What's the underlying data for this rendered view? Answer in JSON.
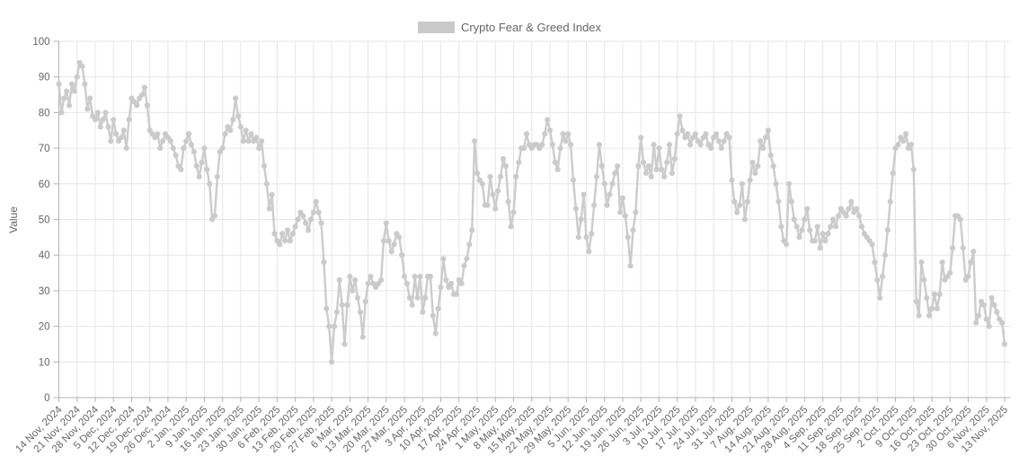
{
  "legend": {
    "label": "Crypto Fear & Greed Index",
    "swatch_color": "#c9c9c9"
  },
  "chart_data": {
    "type": "line",
    "title": "",
    "ylabel": "Value",
    "ylim": [
      0,
      100
    ],
    "ytick_step": 10,
    "ytick_labels": [
      "0",
      "10",
      "20",
      "30",
      "40",
      "50",
      "60",
      "70",
      "80",
      "90",
      "100"
    ],
    "grid": true,
    "legend_position": "top-center",
    "x_frequency": "daily",
    "days_per_xtick": 7,
    "xtick_labels": [
      "14 Nov, 2024",
      "21 Nov, 2024",
      "28 Nov, 2024",
      "5 Dec, 2024",
      "12 Dec, 2024",
      "19 Dec, 2024",
      "26 Dec, 2024",
      "2 Jan, 2025",
      "9 Jan, 2025",
      "16 Jan, 2025",
      "23 Jan, 2025",
      "30 Jan, 2025",
      "6 Feb, 2025",
      "13 Feb, 2025",
      "20 Feb, 2025",
      "27 Feb, 2025",
      "6 Mar, 2025",
      "13 Mar, 2025",
      "20 Mar, 2025",
      "27 Mar, 2025",
      "3 Apr, 2025",
      "10 Apr, 2025",
      "17 Apr, 2025",
      "24 Apr, 2025",
      "1 May, 2025",
      "8 May, 2025",
      "15 May, 2025",
      "22 May, 2025",
      "29 May, 2025",
      "5 Jun, 2025",
      "12 Jun, 2025",
      "19 Jun, 2025",
      "26 Jun, 2025",
      "3 Jul, 2025",
      "10 Jul, 2025",
      "17 Jul, 2025",
      "24 Jul, 2025",
      "31 Jul, 2025",
      "7 Aug, 2025",
      "14 Aug, 2025",
      "21 Aug, 2025",
      "28 Aug, 2025",
      "4 Sep, 2025",
      "11 Sep, 2025",
      "18 Sep, 2025",
      "25 Sep, 2025",
      "2 Oct, 2025",
      "9 Oct, 2025",
      "16 Oct, 2025",
      "23 Oct, 2025",
      "30 Oct, 2025",
      "6 Nov, 2025",
      "13 Nov, 2025"
    ],
    "series": [
      {
        "name": "Crypto Fear & Greed Index",
        "color": "#c9c9c9",
        "first_point_label": "14 Nov, 2024",
        "last_point_label": "13 Nov, 2025",
        "values": [
          88,
          80,
          84,
          86,
          82,
          88,
          86,
          90,
          94,
          93,
          88,
          81,
          84,
          79,
          78,
          80,
          76,
          78,
          80,
          76,
          72,
          78,
          74,
          72,
          73,
          75,
          70,
          78,
          84,
          83,
          82,
          84,
          85,
          87,
          82,
          75,
          74,
          73,
          74,
          70,
          72,
          74,
          73,
          72,
          70,
          68,
          65,
          64,
          70,
          72,
          74,
          71,
          69,
          65,
          62,
          66,
          70,
          64,
          60,
          50,
          51,
          62,
          69,
          70,
          74,
          76,
          75,
          78,
          84,
          79,
          76,
          72,
          75,
          72,
          74,
          72,
          73,
          70,
          72,
          65,
          60,
          53,
          57,
          46,
          44,
          43,
          46,
          44,
          47,
          44,
          46,
          48,
          50,
          52,
          51,
          49,
          47,
          50,
          52,
          55,
          52,
          49,
          38,
          25,
          20,
          10,
          20,
          24,
          33,
          26,
          15,
          26,
          34,
          30,
          33,
          28,
          24,
          17,
          27,
          32,
          34,
          32,
          31,
          32,
          33,
          44,
          49,
          44,
          41,
          43,
          46,
          45,
          40,
          34,
          32,
          28,
          26,
          34,
          28,
          34,
          24,
          28,
          34,
          34,
          23,
          18,
          25,
          31,
          39,
          33,
          31,
          32,
          29,
          29,
          33,
          32,
          37,
          39,
          43,
          47,
          72,
          63,
          61,
          60,
          54,
          54,
          62,
          57,
          53,
          58,
          62,
          67,
          65,
          55,
          48,
          52,
          62,
          66,
          70,
          70,
          74,
          71,
          70,
          71,
          71,
          70,
          71,
          74,
          78,
          75,
          71,
          66,
          64,
          70,
          74,
          72,
          74,
          71,
          61,
          53,
          45,
          50,
          57,
          45,
          41,
          46,
          54,
          62,
          71,
          65,
          60,
          54,
          57,
          60,
          63,
          65,
          52,
          56,
          51,
          45,
          37,
          47,
          52,
          65,
          73,
          66,
          63,
          65,
          62,
          71,
          64,
          70,
          64,
          62,
          66,
          71,
          63,
          67,
          74,
          79,
          75,
          73,
          74,
          71,
          73,
          74,
          72,
          71,
          73,
          74,
          71,
          70,
          73,
          74,
          72,
          70,
          72,
          74,
          73,
          61,
          55,
          52,
          54,
          60,
          50,
          55,
          61,
          66,
          63,
          65,
          72,
          70,
          73,
          75,
          68,
          65,
          60,
          55,
          48,
          44,
          43,
          60,
          55,
          50,
          48,
          45,
          47,
          50,
          53,
          47,
          44,
          44,
          48,
          42,
          46,
          44,
          46,
          48,
          50,
          48,
          51,
          53,
          52,
          51,
          53,
          55,
          52,
          53,
          51,
          48,
          46,
          45,
          44,
          43,
          38,
          33,
          28,
          34,
          40,
          47,
          55,
          63,
          70,
          71,
          73,
          72,
          74,
          70,
          71,
          64,
          27,
          23,
          38,
          33,
          28,
          23,
          25,
          29,
          25,
          29,
          38,
          33,
          34,
          35,
          42,
          51,
          51,
          50,
          42,
          33,
          34,
          38,
          41,
          21,
          23,
          27,
          26,
          22,
          20,
          28,
          26,
          24,
          22,
          21,
          15
        ]
      }
    ],
    "colors": {
      "series": "#c9c9c9",
      "gridline": "#e6e6e6",
      "axis": "#b3b3b3",
      "tick_text": "#666666",
      "background": "#ffffff"
    }
  }
}
